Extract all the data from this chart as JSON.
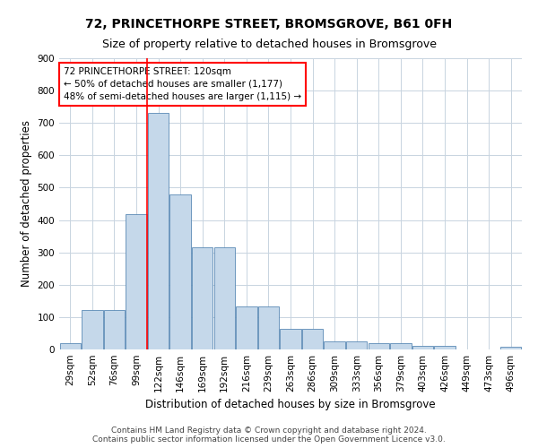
{
  "title": "72, PRINCETHORPE STREET, BROMSGROVE, B61 0FH",
  "subtitle": "Size of property relative to detached houses in Bromsgrove",
  "xlabel": "Distribution of detached houses by size in Bromsgrove",
  "ylabel": "Number of detached properties",
  "footer_line1": "Contains HM Land Registry data © Crown copyright and database right 2024.",
  "footer_line2": "Contains public sector information licensed under the Open Government Licence v3.0.",
  "categories": [
    "29sqm",
    "52sqm",
    "76sqm",
    "99sqm",
    "122sqm",
    "146sqm",
    "169sqm",
    "192sqm",
    "216sqm",
    "239sqm",
    "263sqm",
    "286sqm",
    "309sqm",
    "333sqm",
    "356sqm",
    "379sqm",
    "403sqm",
    "426sqm",
    "449sqm",
    "473sqm",
    "496sqm"
  ],
  "values": [
    20,
    122,
    122,
    418,
    730,
    480,
    315,
    315,
    132,
    132,
    65,
    65,
    25,
    25,
    20,
    20,
    10,
    10,
    0,
    0,
    8
  ],
  "bar_color": "#c5d8ea",
  "bar_edge_color": "#5a8ab5",
  "grid_color": "#c8d4e0",
  "vline_color": "red",
  "vline_pos": 3.5,
  "annotation_text": "72 PRINCETHORPE STREET: 120sqm\n← 50% of detached houses are smaller (1,177)\n48% of semi-detached houses are larger (1,115) →",
  "annotation_box_color": "red",
  "ylim": [
    0,
    900
  ],
  "yticks": [
    0,
    100,
    200,
    300,
    400,
    500,
    600,
    700,
    800,
    900
  ],
  "title_fontsize": 10,
  "subtitle_fontsize": 9,
  "xlabel_fontsize": 8.5,
  "ylabel_fontsize": 8.5,
  "tick_fontsize": 7.5,
  "annotation_fontsize": 7.5,
  "footer_fontsize": 6.5
}
